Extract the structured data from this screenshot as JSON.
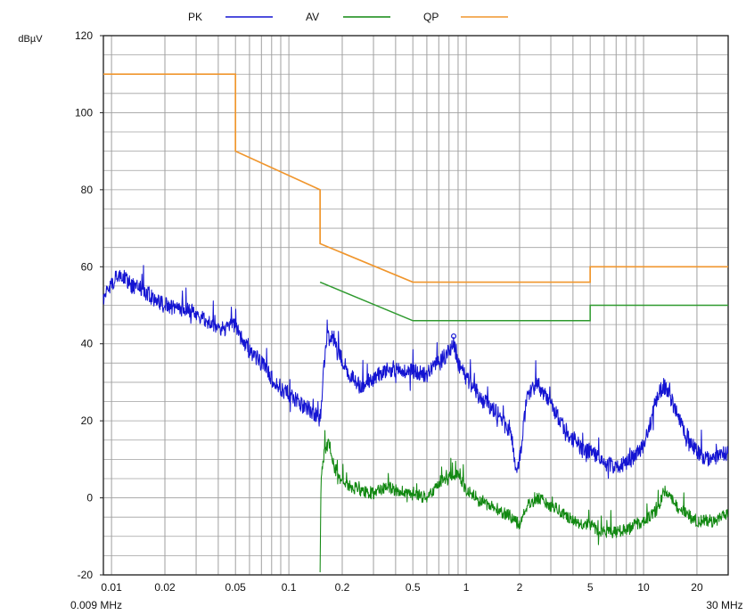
{
  "chart_data": {
    "type": "line",
    "x_scale": "log",
    "x_unit": "MHz",
    "y_unit": "dBµV",
    "xlim": [
      0.009,
      30
    ],
    "ylim": [
      -20,
      120
    ],
    "grid": true,
    "legend_position": "top",
    "x_tick_labels": [
      {
        "x": 0.01,
        "label": "0.01"
      },
      {
        "x": 0.02,
        "label": "0.02"
      },
      {
        "x": 0.05,
        "label": "0.05"
      },
      {
        "x": 0.1,
        "label": "0.1"
      },
      {
        "x": 0.2,
        "label": "0.2"
      },
      {
        "x": 0.5,
        "label": "0.5"
      },
      {
        "x": 1,
        "label": "1"
      },
      {
        "x": 2,
        "label": "2"
      },
      {
        "x": 5,
        "label": "5"
      },
      {
        "x": 10,
        "label": "10"
      },
      {
        "x": 20,
        "label": "20"
      }
    ],
    "x_edge_labels": {
      "left": "0.009 MHz",
      "right": "30 MHz"
    },
    "y_ticks": [
      -20,
      0,
      20,
      40,
      60,
      80,
      100,
      120
    ],
    "series": [
      {
        "name": "PK",
        "color": "#1414d2",
        "noisy": true,
        "points": [
          [
            0.009,
            52
          ],
          [
            0.0095,
            54
          ],
          [
            0.0105,
            57
          ],
          [
            0.011,
            58
          ],
          [
            0.012,
            57
          ],
          [
            0.013,
            55
          ],
          [
            0.015,
            54
          ],
          [
            0.017,
            52
          ],
          [
            0.02,
            50
          ],
          [
            0.025,
            49
          ],
          [
            0.03,
            48
          ],
          [
            0.035,
            46
          ],
          [
            0.04,
            44
          ],
          [
            0.045,
            44
          ],
          [
            0.05,
            45
          ],
          [
            0.055,
            41
          ],
          [
            0.06,
            38
          ],
          [
            0.07,
            35
          ],
          [
            0.08,
            31
          ],
          [
            0.09,
            28
          ],
          [
            0.1,
            27
          ],
          [
            0.12,
            24
          ],
          [
            0.14,
            22
          ],
          [
            0.15,
            20
          ],
          [
            0.16,
            38
          ],
          [
            0.165,
            43
          ],
          [
            0.175,
            42
          ],
          [
            0.19,
            37
          ],
          [
            0.2,
            36
          ],
          [
            0.22,
            32
          ],
          [
            0.25,
            29
          ],
          [
            0.3,
            31
          ],
          [
            0.35,
            33
          ],
          [
            0.4,
            33
          ],
          [
            0.5,
            33
          ],
          [
            0.6,
            32
          ],
          [
            0.7,
            35
          ],
          [
            0.8,
            38
          ],
          [
            0.85,
            40
          ],
          [
            0.9,
            35
          ],
          [
            1.0,
            31
          ],
          [
            1.2,
            26
          ],
          [
            1.5,
            22
          ],
          [
            1.8,
            16
          ],
          [
            1.9,
            8
          ],
          [
            2.0,
            10
          ],
          [
            2.2,
            26
          ],
          [
            2.5,
            30
          ],
          [
            3.0,
            24
          ],
          [
            3.5,
            19
          ],
          [
            4.0,
            15
          ],
          [
            4.5,
            13
          ],
          [
            5.0,
            12
          ],
          [
            6.0,
            9
          ],
          [
            7.0,
            8
          ],
          [
            8.0,
            9
          ],
          [
            9.0,
            11
          ],
          [
            10.0,
            14
          ],
          [
            11.0,
            20
          ],
          [
            12.0,
            27
          ],
          [
            13.0,
            29
          ],
          [
            14.0,
            27
          ],
          [
            15.0,
            23
          ],
          [
            17.0,
            17
          ],
          [
            20.0,
            12
          ],
          [
            22.0,
            10
          ],
          [
            25.0,
            10
          ],
          [
            30.0,
            12
          ]
        ]
      },
      {
        "name": "AV",
        "color": "#118811",
        "noisy": true,
        "points": [
          [
            0.15,
            -20
          ],
          [
            0.152,
            5
          ],
          [
            0.16,
            13
          ],
          [
            0.17,
            14
          ],
          [
            0.18,
            8
          ],
          [
            0.2,
            4
          ],
          [
            0.25,
            2
          ],
          [
            0.3,
            1
          ],
          [
            0.35,
            3
          ],
          [
            0.4,
            2
          ],
          [
            0.5,
            1
          ],
          [
            0.6,
            0
          ],
          [
            0.7,
            4
          ],
          [
            0.8,
            5
          ],
          [
            0.9,
            6
          ],
          [
            1.0,
            2
          ],
          [
            1.2,
            -1
          ],
          [
            1.5,
            -3
          ],
          [
            1.8,
            -5
          ],
          [
            2.0,
            -7
          ],
          [
            2.2,
            -2
          ],
          [
            2.5,
            0
          ],
          [
            3.0,
            -2
          ],
          [
            3.5,
            -4
          ],
          [
            4.0,
            -6
          ],
          [
            5.0,
            -7
          ],
          [
            6.0,
            -9
          ],
          [
            7.0,
            -9
          ],
          [
            8.0,
            -8
          ],
          [
            10.0,
            -6
          ],
          [
            12.0,
            -3
          ],
          [
            13.0,
            2
          ],
          [
            14.0,
            0
          ],
          [
            16.0,
            -3
          ],
          [
            20.0,
            -6
          ],
          [
            25.0,
            -6
          ],
          [
            30.0,
            -4
          ]
        ]
      },
      {
        "name": "QP",
        "color": "#f0962d",
        "noisy": false,
        "points": [
          [
            0.009,
            110
          ],
          [
            0.05,
            110
          ],
          [
            0.05,
            90
          ],
          [
            0.15,
            80
          ],
          [
            0.15,
            66
          ],
          [
            0.5,
            56
          ],
          [
            5.0,
            56
          ],
          [
            5.0,
            60
          ],
          [
            30.0,
            60
          ]
        ]
      },
      {
        "name": "",
        "color": "#2f9a2f",
        "noisy": false,
        "points": [
          [
            0.15,
            56
          ],
          [
            0.5,
            46
          ],
          [
            5.0,
            46
          ],
          [
            5.0,
            50
          ],
          [
            30.0,
            50
          ]
        ]
      }
    ],
    "markers": [
      {
        "x": 0.85,
        "y": 42,
        "shape": "circle",
        "color": "#1414d2"
      }
    ]
  }
}
